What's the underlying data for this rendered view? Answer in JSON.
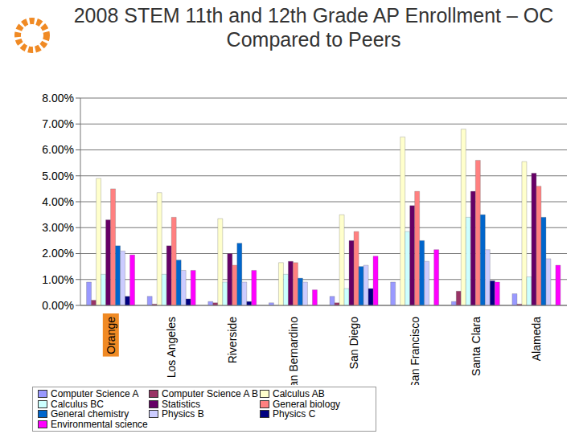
{
  "chart_data": {
    "type": "bar",
    "title": "2008 STEM 11th and 12th Grade AP Enrollment – OC Compared to Peers",
    "categories": [
      "Orange",
      "Los Angeles",
      "Riverside",
      "San Bernardino",
      "San Diego",
      "San Francisco",
      "Santa Clara",
      "Alameda"
    ],
    "series": [
      {
        "name": "Computer Science A",
        "color": "#9999ff",
        "values": [
          0.9,
          0.35,
          0.15,
          0.1,
          0.35,
          0.9,
          0.15,
          0.45
        ]
      },
      {
        "name": "Computer Science A B",
        "color": "#993366",
        "values": [
          0.2,
          0.05,
          0.1,
          0.0,
          0.1,
          0.0,
          0.55,
          0.05
        ]
      },
      {
        "name": "Calculus AB",
        "color": "#ffffcc",
        "values": [
          4.9,
          4.35,
          3.35,
          1.65,
          3.5,
          6.5,
          6.8,
          5.55
        ]
      },
      {
        "name": "Calculus BC",
        "color": "#ccffff",
        "values": [
          1.2,
          1.2,
          0.9,
          1.2,
          0.65,
          2.85,
          3.4,
          1.1
        ]
      },
      {
        "name": "Statistics",
        "color": "#660066",
        "values": [
          3.3,
          2.3,
          2.0,
          1.7,
          2.5,
          3.85,
          4.4,
          5.1
        ]
      },
      {
        "name": "General biology",
        "color": "#ff8080",
        "values": [
          4.5,
          3.4,
          1.55,
          1.65,
          2.85,
          4.4,
          5.6,
          4.6
        ]
      },
      {
        "name": "General chemistry",
        "color": "#0066cc",
        "values": [
          2.3,
          1.75,
          2.4,
          1.05,
          1.5,
          2.5,
          3.5,
          3.4
        ]
      },
      {
        "name": "Physics B",
        "color": "#ccccff",
        "values": [
          2.1,
          1.35,
          0.9,
          0.9,
          1.55,
          1.7,
          2.15,
          1.8
        ]
      },
      {
        "name": "Physics C",
        "color": "#000080",
        "values": [
          0.35,
          0.25,
          0.15,
          0.0,
          0.65,
          0.0,
          0.95,
          0.0
        ]
      },
      {
        "name": "Environmental science",
        "color": "#ff00ff",
        "values": [
          1.95,
          1.35,
          1.35,
          0.6,
          1.9,
          2.15,
          0.9,
          1.55
        ]
      }
    ],
    "ylim": [
      0,
      8
    ],
    "yticks": [
      {
        "value": 0,
        "label": "0.00%"
      },
      {
        "value": 1,
        "label": "1.00%"
      },
      {
        "value": 2,
        "label": "2.00%"
      },
      {
        "value": 3,
        "label": "3.00%"
      },
      {
        "value": 4,
        "label": "4.00%"
      },
      {
        "value": 5,
        "label": "5.00%"
      },
      {
        "value": 6,
        "label": "6.00%"
      },
      {
        "value": 7,
        "label": "7.00%"
      },
      {
        "value": 8,
        "label": "8.00%"
      }
    ],
    "grid": true,
    "legend": "bottom"
  }
}
